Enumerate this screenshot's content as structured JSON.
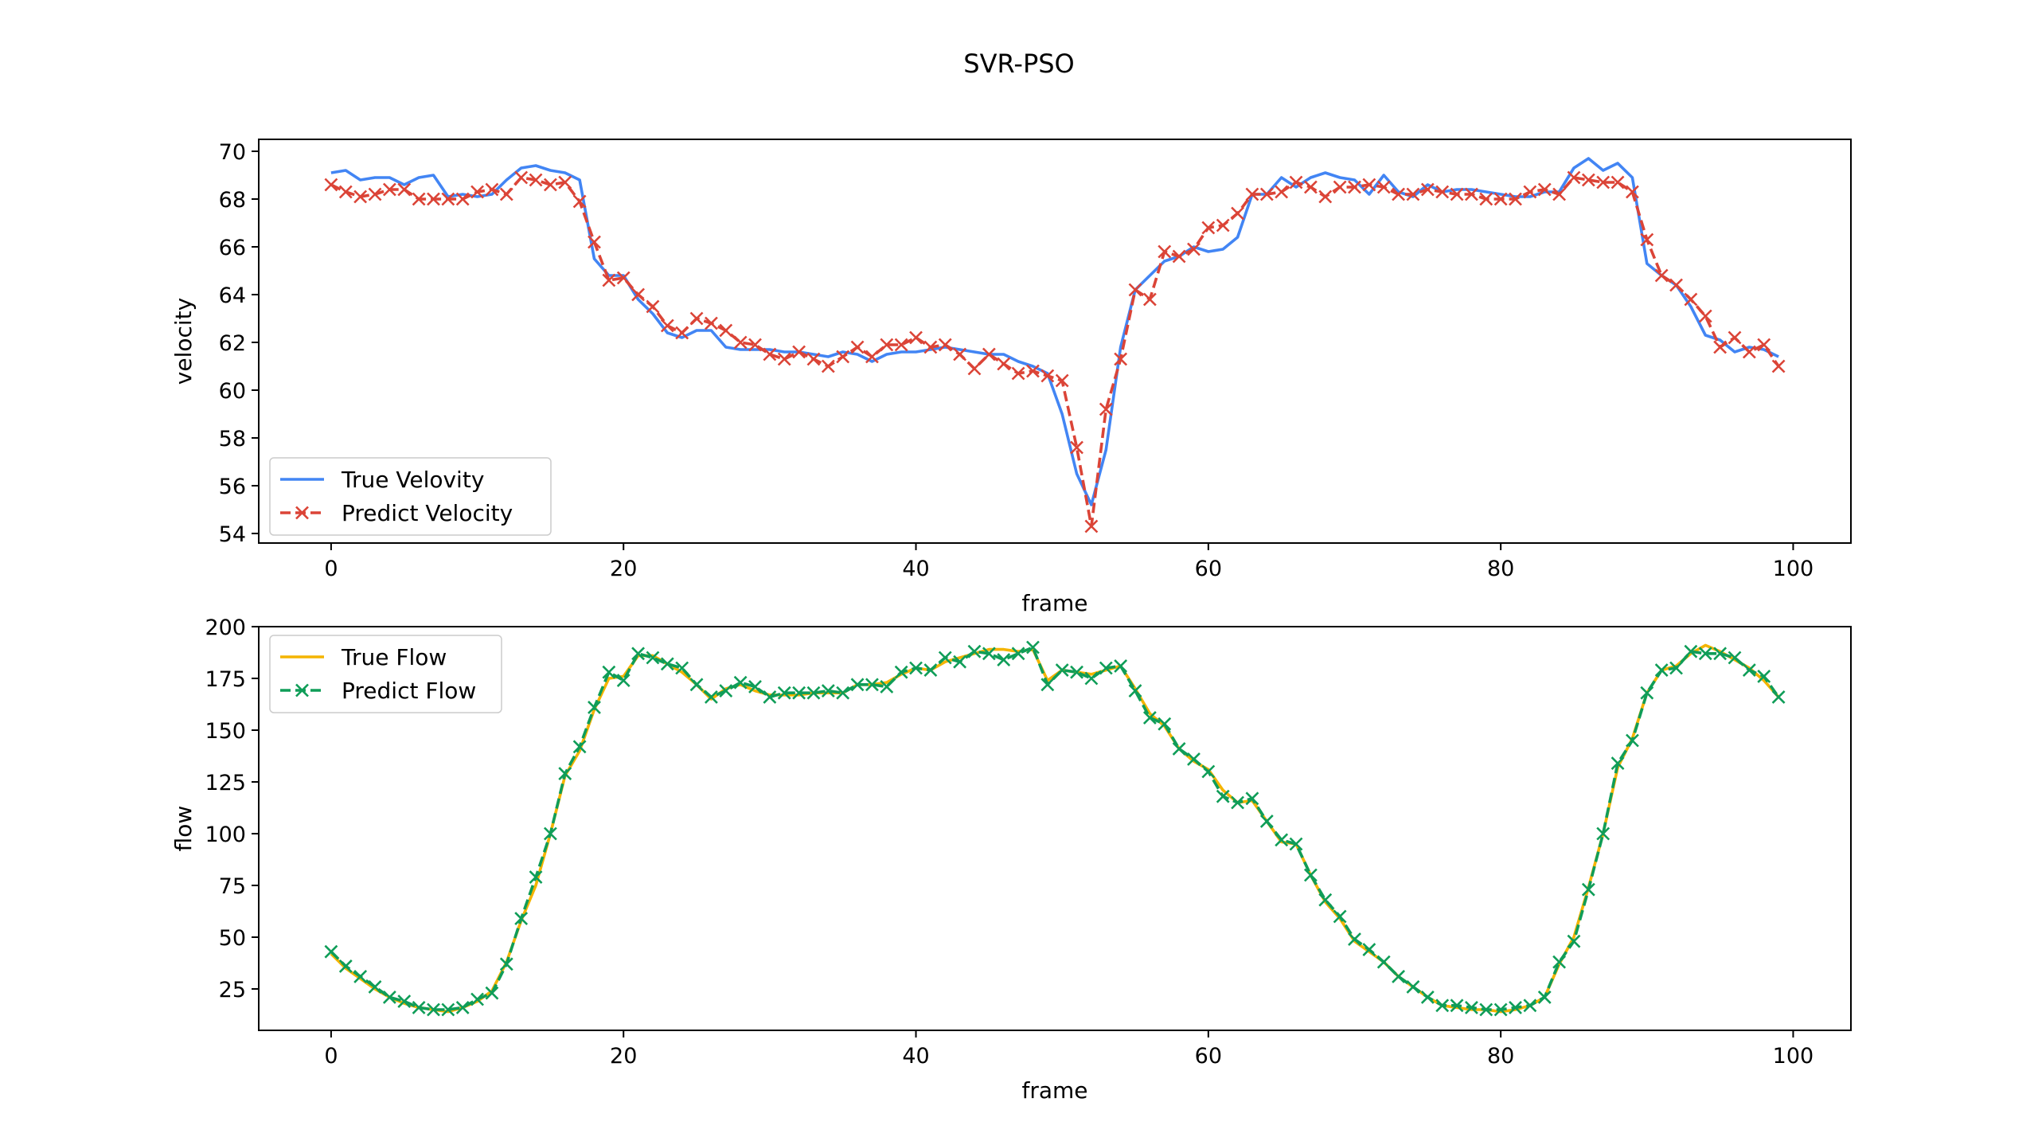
{
  "figure": {
    "suptitle": "SVR-PSO"
  },
  "colors": {
    "true_velocity": "#4285f4",
    "predict_velocity": "#db4437",
    "true_flow": "#f4b400",
    "predict_flow": "#0f9d58"
  },
  "chart_data": [
    {
      "type": "line",
      "title": "",
      "xlabel": "frame",
      "ylabel": "velocity",
      "xlim": [
        -4.95,
        103.95
      ],
      "ylim": [
        53.6,
        70.5
      ],
      "xticks": [
        0,
        20,
        40,
        60,
        80,
        100
      ],
      "yticks": [
        54,
        56,
        58,
        60,
        62,
        64,
        66,
        68,
        70
      ],
      "grid": false,
      "legend_position": "lower left",
      "x": [
        0,
        1,
        2,
        3,
        4,
        5,
        6,
        7,
        8,
        9,
        10,
        11,
        12,
        13,
        14,
        15,
        16,
        17,
        18,
        19,
        20,
        21,
        22,
        23,
        24,
        25,
        26,
        27,
        28,
        29,
        30,
        31,
        32,
        33,
        34,
        35,
        36,
        37,
        38,
        39,
        40,
        41,
        42,
        43,
        44,
        45,
        46,
        47,
        48,
        49,
        50,
        51,
        52,
        53,
        54,
        55,
        56,
        57,
        58,
        59,
        60,
        61,
        62,
        63,
        64,
        65,
        66,
        67,
        68,
        69,
        70,
        71,
        72,
        73,
        74,
        75,
        76,
        77,
        78,
        79,
        80,
        81,
        82,
        83,
        84,
        85,
        86,
        87,
        88,
        89,
        90,
        91,
        92,
        93,
        94,
        95,
        96,
        97,
        98,
        99
      ],
      "series": [
        {
          "name": "True Velovity",
          "style": "solid",
          "values": [
            69.1,
            69.2,
            68.8,
            68.9,
            68.9,
            68.6,
            68.9,
            69.0,
            68.1,
            68.2,
            68.1,
            68.2,
            68.8,
            69.3,
            69.4,
            69.2,
            69.1,
            68.8,
            65.5,
            64.8,
            64.8,
            63.8,
            63.2,
            62.4,
            62.2,
            62.5,
            62.5,
            61.8,
            61.7,
            61.7,
            61.7,
            61.6,
            61.6,
            61.5,
            61.4,
            61.6,
            61.5,
            61.2,
            61.5,
            61.6,
            61.6,
            61.7,
            61.8,
            61.7,
            61.6,
            61.5,
            61.5,
            61.2,
            61.0,
            60.7,
            59.0,
            56.5,
            55.2,
            57.5,
            61.8,
            64.2,
            64.8,
            65.4,
            65.6,
            66.0,
            65.8,
            65.9,
            66.4,
            68.2,
            68.2,
            68.9,
            68.5,
            68.9,
            69.1,
            68.9,
            68.8,
            68.2,
            69.0,
            68.3,
            68.1,
            68.6,
            68.3,
            68.4,
            68.4,
            68.3,
            68.2,
            68.1,
            68.1,
            68.3,
            68.3,
            69.3,
            69.7,
            69.2,
            69.5,
            68.9,
            65.3,
            64.8,
            64.4,
            63.5,
            62.3,
            62.1,
            61.6,
            61.8,
            61.7,
            61.4
          ]
        },
        {
          "name": "Predict Velocity",
          "style": "dashed",
          "marker": "x",
          "values": [
            68.6,
            68.3,
            68.1,
            68.2,
            68.4,
            68.4,
            68.0,
            68.0,
            68.0,
            68.0,
            68.3,
            68.4,
            68.2,
            68.9,
            68.8,
            68.6,
            68.7,
            67.9,
            66.2,
            64.6,
            64.7,
            64.0,
            63.5,
            62.7,
            62.4,
            63.0,
            62.8,
            62.5,
            62.0,
            61.9,
            61.5,
            61.3,
            61.6,
            61.3,
            61.0,
            61.4,
            61.8,
            61.4,
            61.9,
            61.9,
            62.2,
            61.8,
            61.9,
            61.5,
            60.9,
            61.5,
            61.1,
            60.7,
            60.8,
            60.6,
            60.4,
            57.6,
            54.3,
            59.2,
            61.3,
            64.2,
            63.8,
            65.8,
            65.6,
            65.9,
            66.8,
            66.9,
            67.4,
            68.2,
            68.2,
            68.3,
            68.7,
            68.5,
            68.1,
            68.5,
            68.5,
            68.6,
            68.5,
            68.2,
            68.2,
            68.4,
            68.3,
            68.2,
            68.2,
            68.0,
            68.0,
            68.0,
            68.3,
            68.4,
            68.2,
            68.9,
            68.8,
            68.7,
            68.7,
            68.3,
            66.3,
            64.8,
            64.4,
            63.8,
            63.1,
            61.8,
            62.2,
            61.6,
            61.9,
            61.0
          ]
        }
      ]
    },
    {
      "type": "line",
      "title": "",
      "xlabel": "frame",
      "ylabel": "flow",
      "xlim": [
        -4.95,
        103.95
      ],
      "ylim": [
        5,
        200
      ],
      "xticks": [
        0,
        20,
        40,
        60,
        80,
        100
      ],
      "yticks": [
        25,
        50,
        75,
        100,
        125,
        150,
        175,
        200
      ],
      "grid": false,
      "legend_position": "upper left",
      "x": [
        0,
        1,
        2,
        3,
        4,
        5,
        6,
        7,
        8,
        9,
        10,
        11,
        12,
        13,
        14,
        15,
        16,
        17,
        18,
        19,
        20,
        21,
        22,
        23,
        24,
        25,
        26,
        27,
        28,
        29,
        30,
        31,
        32,
        33,
        34,
        35,
        36,
        37,
        38,
        39,
        40,
        41,
        42,
        43,
        44,
        45,
        46,
        47,
        48,
        49,
        50,
        51,
        52,
        53,
        54,
        55,
        56,
        57,
        58,
        59,
        60,
        61,
        62,
        63,
        64,
        65,
        66,
        67,
        68,
        69,
        70,
        71,
        72,
        73,
        74,
        75,
        76,
        77,
        78,
        79,
        80,
        81,
        82,
        83,
        84,
        85,
        86,
        87,
        88,
        89,
        90,
        91,
        92,
        93,
        94,
        95,
        96,
        97,
        98,
        99
      ],
      "series": [
        {
          "name": "True Flow",
          "style": "solid",
          "values": [
            42,
            35,
            30,
            25,
            21,
            18,
            16,
            15,
            14,
            16,
            19,
            24,
            38,
            58,
            75,
            100,
            128,
            140,
            160,
            175,
            176,
            186,
            186,
            182,
            178,
            172,
            165,
            170,
            172,
            169,
            167,
            167,
            167,
            168,
            168,
            168,
            172,
            172,
            173,
            177,
            180,
            179,
            183,
            185,
            187,
            189,
            189,
            188,
            189,
            174,
            179,
            178,
            177,
            179,
            181,
            170,
            158,
            152,
            141,
            135,
            131,
            121,
            115,
            116,
            106,
            96,
            95,
            80,
            67,
            59,
            48,
            43,
            38,
            31,
            26,
            21,
            17,
            16,
            15,
            15,
            14,
            15,
            17,
            21,
            37,
            50,
            74,
            100,
            132,
            146,
            168,
            179,
            181,
            187,
            191,
            188,
            184,
            180,
            174,
            166
          ]
        },
        {
          "name": "Predict Flow",
          "style": "dashed",
          "marker": "x",
          "values": [
            43,
            36,
            31,
            26,
            21,
            19,
            16,
            15,
            15,
            16,
            20,
            23,
            37,
            59,
            79,
            100,
            129,
            142,
            161,
            178,
            174,
            187,
            185,
            182,
            180,
            172,
            166,
            169,
            173,
            171,
            166,
            168,
            168,
            168,
            169,
            168,
            172,
            172,
            171,
            178,
            180,
            179,
            185,
            183,
            188,
            187,
            184,
            187,
            190,
            172,
            179,
            178,
            175,
            180,
            181,
            169,
            156,
            153,
            141,
            136,
            130,
            118,
            115,
            117,
            106,
            97,
            95,
            80,
            68,
            60,
            49,
            44,
            38,
            31,
            26,
            21,
            17,
            17,
            16,
            15,
            15,
            16,
            17,
            21,
            38,
            48,
            73,
            100,
            134,
            145,
            168,
            179,
            180,
            188,
            187,
            187,
            185,
            179,
            176,
            166
          ]
        }
      ]
    }
  ]
}
